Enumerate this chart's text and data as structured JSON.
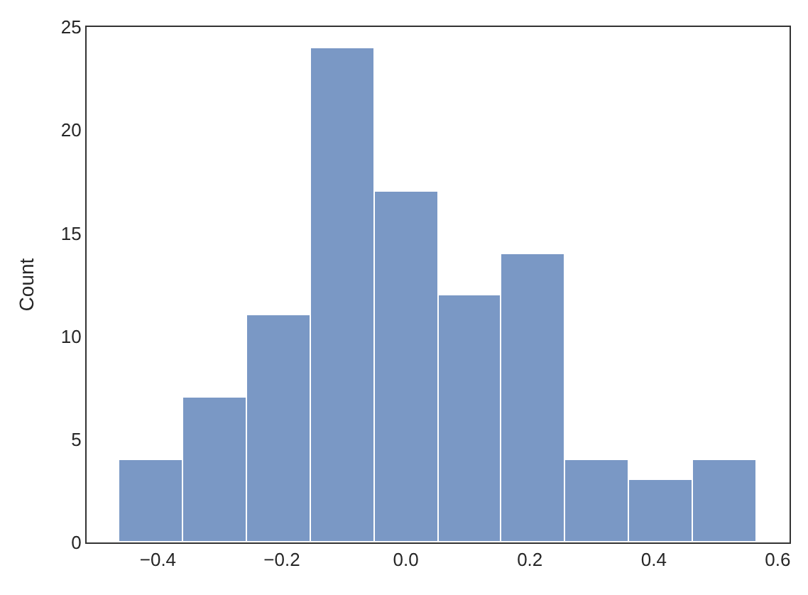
{
  "chart_data": {
    "type": "histogram",
    "ylabel": "Count",
    "bins": [
      -0.463,
      -0.36,
      -0.257,
      -0.154,
      -0.051,
      0.052,
      0.155,
      0.258,
      0.361,
      0.464,
      0.567
    ],
    "values": [
      4,
      7,
      11,
      24,
      17,
      12,
      14,
      4,
      3,
      4
    ],
    "color": "#7a98c5",
    "xlim": [
      -0.515,
      0.619
    ],
    "xticks": [
      {
        "value": -0.4,
        "label": "−0.4"
      },
      {
        "value": -0.2,
        "label": "−0.2"
      },
      {
        "value": 0.0,
        "label": "0.0"
      },
      {
        "value": 0.2,
        "label": "0.2"
      },
      {
        "value": 0.4,
        "label": "0.4"
      },
      {
        "value": 0.6,
        "label": "0.6"
      }
    ],
    "ylim": [
      0,
      25
    ],
    "yticks": [
      0,
      5,
      10,
      15,
      20,
      25
    ],
    "grid": false
  }
}
